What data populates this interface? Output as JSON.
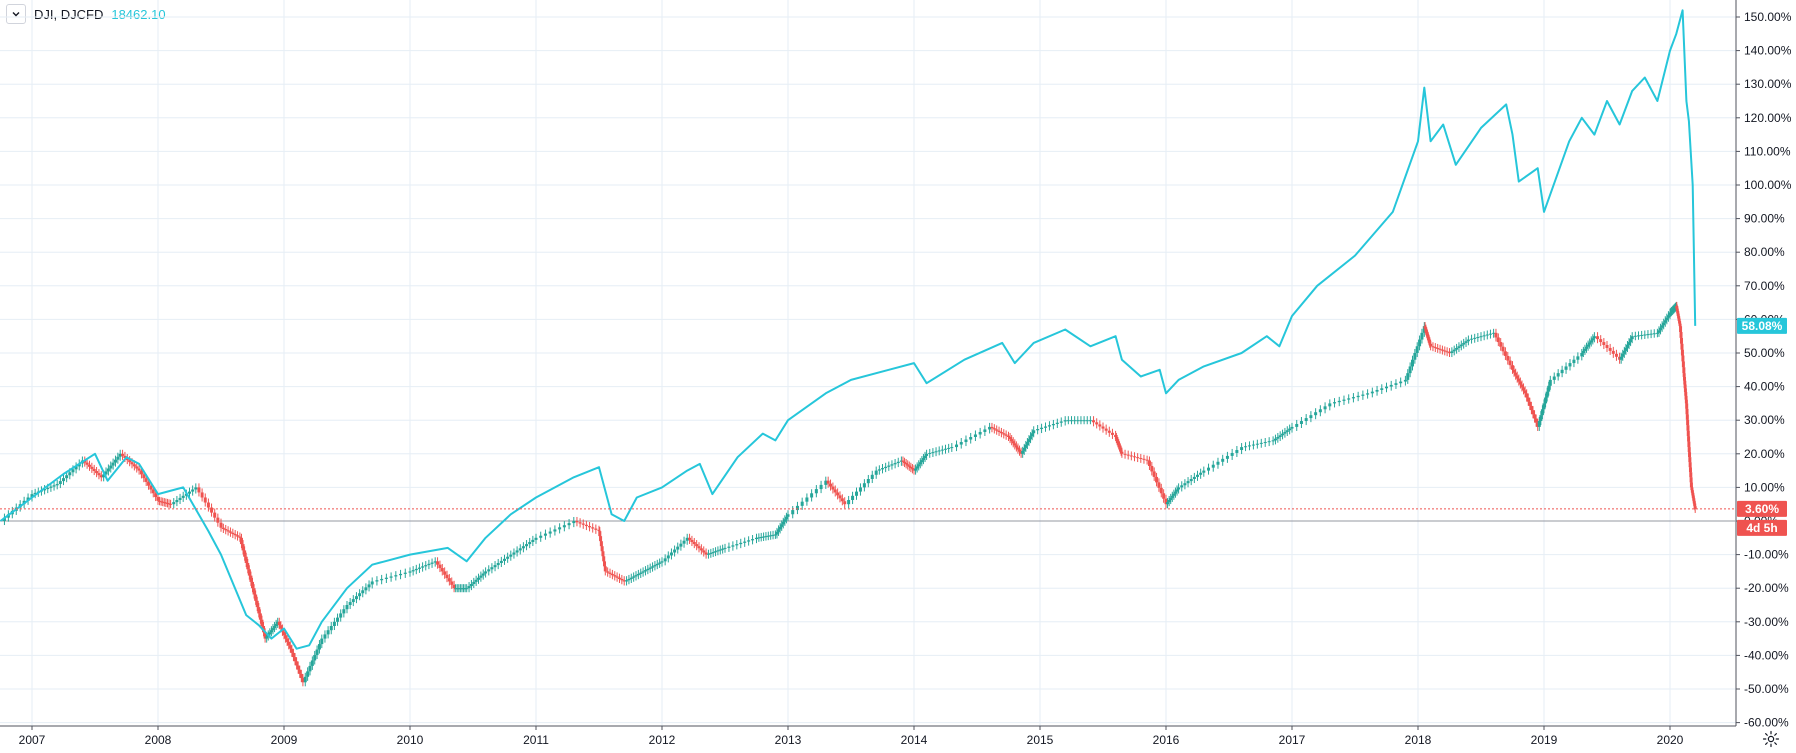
{
  "header": {
    "symbol": "DJI, DJCFD",
    "compare_value": "18462.10",
    "collapse_icon": "chevron-down-icon"
  },
  "colors": {
    "background": "#ffffff",
    "grid": "#e6eef5",
    "compare_line": "#26c6da",
    "candle_up": "#26a69a",
    "candle_down": "#ef5350",
    "zero_line": "#9598a1",
    "last_price_line": "#ef5350",
    "axis_text": "#131722"
  },
  "badges": {
    "compare_pct": "58.08%",
    "main_pct": "3.60%",
    "countdown": "4d 5h"
  },
  "settings_icon": "gear-icon",
  "chart_data": {
    "type": "line",
    "title": "",
    "xlabel": "",
    "ylabel": "",
    "x_ticks": [
      "2007",
      "2008",
      "2009",
      "2010",
      "2011",
      "2012",
      "2013",
      "2014",
      "2015",
      "2016",
      "2017",
      "2018",
      "2019",
      "2020"
    ],
    "y_ticks": [
      "150.00%",
      "140.00%",
      "130.00%",
      "120.00%",
      "110.00%",
      "100.00%",
      "90.00%",
      "80.00%",
      "70.00%",
      "60.00%",
      "50.00%",
      "40.00%",
      "30.00%",
      "20.00%",
      "10.00%",
      "0.00%",
      "-10.00%",
      "-20.00%",
      "-30.00%",
      "-40.00%",
      "-50.00%",
      "-60.00%"
    ],
    "ylim": [
      -60,
      150
    ],
    "xlim": [
      2006.75,
      2020.2
    ],
    "grid": true,
    "series": [
      {
        "name": "DJCFD",
        "style": "line",
        "x": [
          2006.75,
          2007.0,
          2007.25,
          2007.5,
          2007.6,
          2007.75,
          2007.85,
          2008.0,
          2008.2,
          2008.4,
          2008.5,
          2008.7,
          2008.8,
          2008.9,
          2009.0,
          2009.1,
          2009.2,
          2009.3,
          2009.5,
          2009.7,
          2010.0,
          2010.3,
          2010.45,
          2010.6,
          2010.8,
          2011.0,
          2011.3,
          2011.5,
          2011.6,
          2011.7,
          2011.8,
          2012.0,
          2012.2,
          2012.3,
          2012.4,
          2012.6,
          2012.8,
          2012.9,
          2013.0,
          2013.3,
          2013.5,
          2013.8,
          2014.0,
          2014.1,
          2014.4,
          2014.7,
          2014.8,
          2014.95,
          2015.2,
          2015.4,
          2015.6,
          2015.65,
          2015.8,
          2015.95,
          2016.0,
          2016.1,
          2016.3,
          2016.6,
          2016.8,
          2016.9,
          2017.0,
          2017.2,
          2017.5,
          2017.8,
          2018.0,
          2018.05,
          2018.1,
          2018.2,
          2018.3,
          2018.5,
          2018.7,
          2018.75,
          2018.8,
          2018.95,
          2019.0,
          2019.2,
          2019.3,
          2019.4,
          2019.5,
          2019.6,
          2019.7,
          2019.8,
          2019.9,
          2020.0,
          2020.05,
          2020.1,
          2020.13,
          2020.15,
          2020.18,
          2020.2
        ],
        "values": [
          0,
          7,
          14,
          20,
          12,
          19,
          17,
          8,
          10,
          -3,
          -10,
          -28,
          -31,
          -35,
          -32,
          -38,
          -37,
          -30,
          -20,
          -13,
          -10,
          -8,
          -12,
          -5,
          2,
          7,
          13,
          16,
          2,
          0,
          7,
          10,
          15,
          17,
          8,
          19,
          26,
          24,
          30,
          38,
          42,
          45,
          47,
          41,
          48,
          53,
          47,
          53,
          57,
          52,
          55,
          48,
          43,
          45,
          38,
          42,
          46,
          50,
          55,
          52,
          61,
          70,
          79,
          92,
          113,
          129,
          113,
          118,
          106,
          117,
          124,
          115,
          101,
          105,
          92,
          113,
          120,
          115,
          125,
          118,
          128,
          132,
          125,
          140,
          145,
          152,
          125,
          119,
          100,
          58.08
        ]
      },
      {
        "name": "DJI",
        "style": "candle",
        "x": [
          2006.75,
          2007.0,
          2007.2,
          2007.4,
          2007.55,
          2007.7,
          2007.85,
          2008.0,
          2008.1,
          2008.3,
          2008.5,
          2008.65,
          2008.75,
          2008.85,
          2008.95,
          2009.05,
          2009.15,
          2009.3,
          2009.5,
          2009.7,
          2010.0,
          2010.2,
          2010.35,
          2010.45,
          2010.6,
          2010.8,
          2011.0,
          2011.3,
          2011.5,
          2011.55,
          2011.7,
          2011.85,
          2012.0,
          2012.2,
          2012.35,
          2012.5,
          2012.75,
          2012.9,
          2013.0,
          2013.3,
          2013.45,
          2013.7,
          2013.9,
          2014.0,
          2014.1,
          2014.3,
          2014.6,
          2014.75,
          2014.85,
          2014.95,
          2015.2,
          2015.4,
          2015.6,
          2015.65,
          2015.85,
          2016.0,
          2016.1,
          2016.3,
          2016.6,
          2016.85,
          2017.0,
          2017.3,
          2017.6,
          2017.9,
          2018.05,
          2018.1,
          2018.25,
          2018.4,
          2018.6,
          2018.75,
          2018.85,
          2018.95,
          2019.05,
          2019.3,
          2019.4,
          2019.6,
          2019.7,
          2019.9,
          2020.0,
          2020.05,
          2020.08,
          2020.11,
          2020.13,
          2020.15,
          2020.17,
          2020.2
        ],
        "values": [
          0,
          8,
          11,
          18,
          13,
          20,
          15,
          6,
          5,
          10,
          -2,
          -5,
          -20,
          -35,
          -30,
          -38,
          -48,
          -35,
          -25,
          -18,
          -15,
          -12,
          -20,
          -20,
          -15,
          -10,
          -5,
          0,
          -3,
          -15,
          -18,
          -15,
          -12,
          -5,
          -10,
          -8,
          -5,
          -4,
          2,
          12,
          5,
          15,
          18,
          15,
          20,
          22,
          28,
          25,
          20,
          27,
          30,
          30,
          25,
          20,
          18,
          5,
          10,
          15,
          22,
          24,
          28,
          35,
          38,
          42,
          58,
          52,
          50,
          54,
          56,
          45,
          38,
          28,
          42,
          50,
          55,
          48,
          55,
          56,
          62,
          64,
          58,
          44,
          35,
          22,
          10,
          3.6
        ]
      }
    ],
    "annotations": [
      "3.60%",
      "58.08%",
      "4d 5h"
    ]
  }
}
